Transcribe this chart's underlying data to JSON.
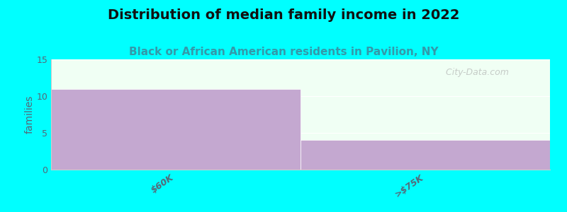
{
  "title": "Distribution of median family income in 2022",
  "subtitle": "Black or African American residents in Pavilion, NY",
  "categories": [
    "$60K",
    ">$75K"
  ],
  "values": [
    11,
    4
  ],
  "bar_color": "#C4A8D0",
  "background_color": "#00FFFF",
  "plot_bg_color": "#F0FFF4",
  "ylabel": "families",
  "ylim": [
    0,
    15
  ],
  "yticks": [
    0,
    5,
    10,
    15
  ],
  "title_fontsize": 14,
  "subtitle_fontsize": 11,
  "watermark": "  City-Data.com",
  "bar_width": 1.0
}
